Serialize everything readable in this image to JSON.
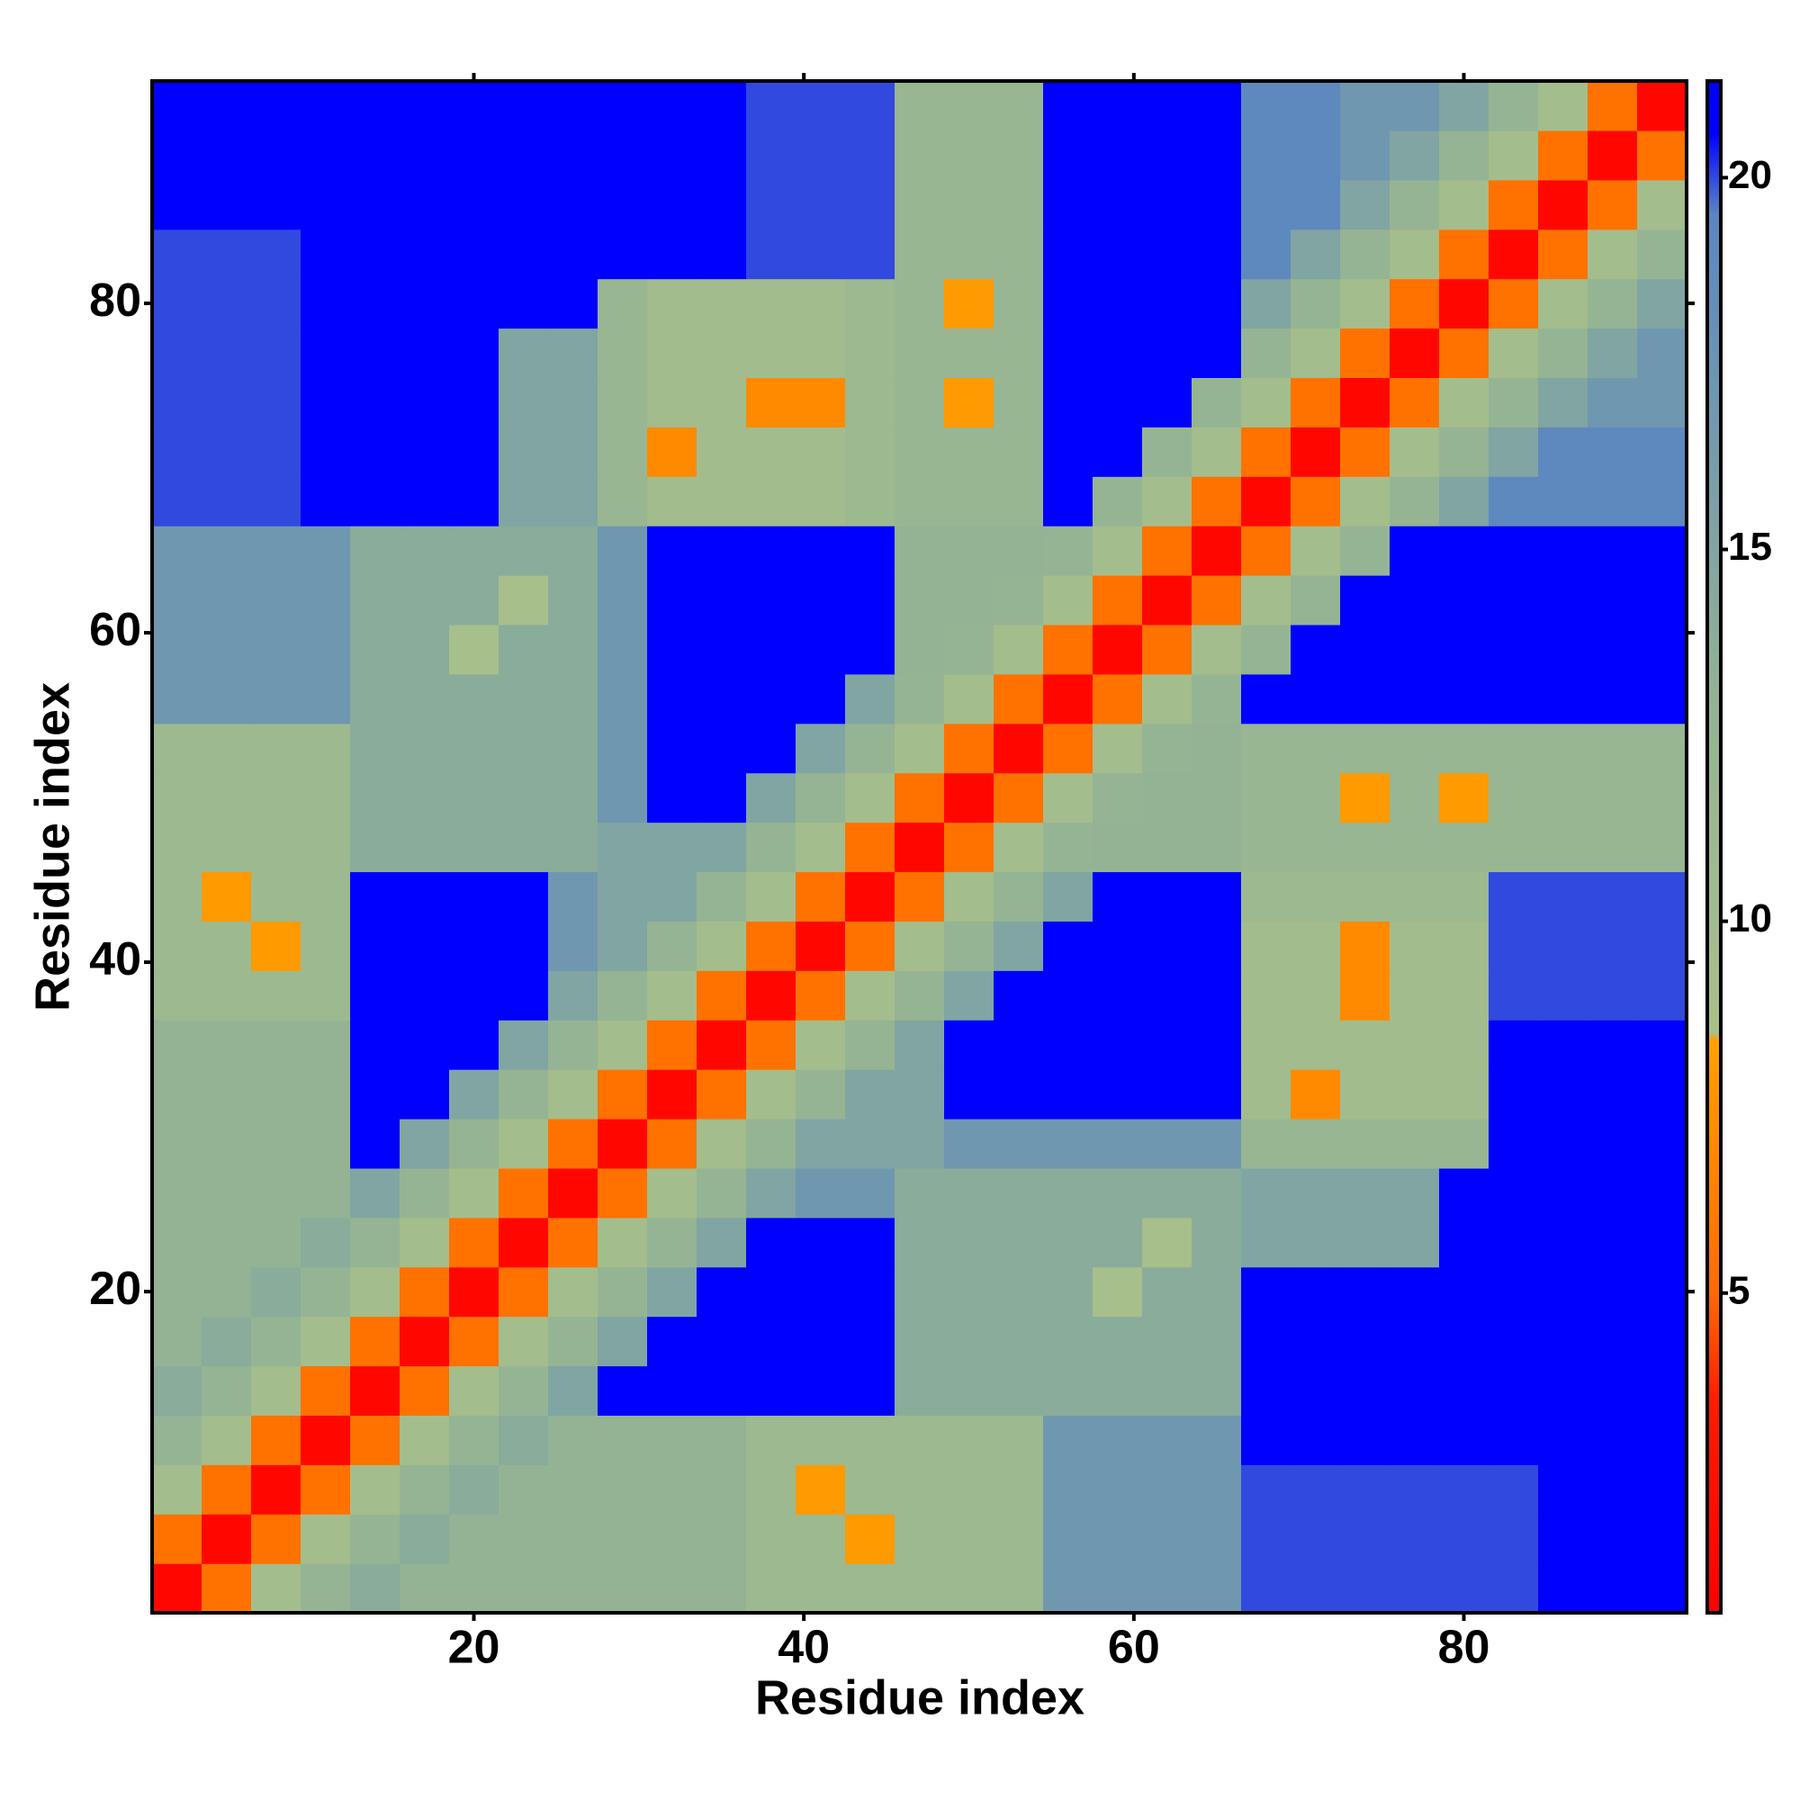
{
  "chart_data": {
    "type": "heatmap",
    "xlabel": "Residue index",
    "ylabel": "Residue index",
    "xlim": [
      0.5,
      93.5
    ],
    "ylim": [
      0.5,
      93.5
    ],
    "xticks": [
      20,
      40,
      60,
      80
    ],
    "yticks": [
      20,
      40,
      60,
      80
    ],
    "xbins": [
      0.5,
      3.5,
      6.5,
      9.5,
      12.5,
      15.5,
      18.5,
      21.5,
      24.5,
      27.5,
      30.5,
      33.5,
      36.5,
      39.5,
      42.5,
      45.5,
      48.5,
      51.5,
      54.5,
      57.5,
      60.5,
      63.5,
      66.5,
      69.5,
      72.5,
      75.5,
      78.5,
      81.5,
      84.5,
      87.5,
      90.5,
      93.5
    ],
    "ybins": [
      0.5,
      3.5,
      6.5,
      9.5,
      12.5,
      15.5,
      18.5,
      21.5,
      24.5,
      27.5,
      30.5,
      33.5,
      36.5,
      39.5,
      42.5,
      45.5,
      48.5,
      51.5,
      54.5,
      57.5,
      60.5,
      63.5,
      66.5,
      69.5,
      72.5,
      75.5,
      78.5,
      81.5,
      84.5,
      87.5,
      90.5,
      93.5
    ],
    "clim": [
      0.7,
      21.3
    ],
    "cticks": [
      5,
      10,
      15,
      20
    ],
    "colorscale": [
      {
        "value": 0.7,
        "color": "#ff0000"
      },
      {
        "value": 3.5,
        "color": "#ff1a00"
      },
      {
        "value": 5,
        "color": "#ff6a00"
      },
      {
        "value": 8.4,
        "color": "#ffa000"
      },
      {
        "value": 8.5,
        "color": "#a9c08a"
      },
      {
        "value": 13,
        "color": "#93b394"
      },
      {
        "value": 19.5,
        "color": "#5a86c2"
      },
      {
        "value": 20.6,
        "color": "#0000ff"
      },
      {
        "value": 21.3,
        "color": "#0000ff"
      }
    ],
    "values": [
      [
        1.5,
        5.5,
        9.5,
        12.5,
        14,
        13,
        13,
        13,
        13,
        13,
        13,
        13,
        11,
        11,
        11,
        11,
        11,
        11,
        17,
        17,
        17,
        17,
        20,
        20,
        20,
        20,
        20,
        20,
        21,
        21,
        21
      ],
      [
        5.5,
        1.5,
        5.5,
        9.5,
        12.5,
        14,
        13,
        13,
        13,
        13,
        13,
        13,
        11,
        11,
        8,
        11,
        11,
        11,
        17,
        17,
        17,
        17,
        20,
        20,
        20,
        20,
        20,
        20,
        21,
        21,
        21
      ],
      [
        9.5,
        5.5,
        1.5,
        5.5,
        9.5,
        12.5,
        14,
        13,
        13,
        13,
        13,
        13,
        11,
        8,
        11,
        11,
        11,
        11,
        17,
        17,
        17,
        17,
        20,
        20,
        20,
        20,
        20,
        20,
        21,
        21,
        21
      ],
      [
        12.5,
        9.5,
        5.5,
        1.5,
        5.5,
        9.5,
        12.5,
        14,
        13,
        13,
        13,
        13,
        11,
        11,
        11,
        11,
        11,
        11,
        17,
        17,
        17,
        17,
        21,
        21,
        21,
        21,
        21,
        21,
        21,
        21,
        21
      ],
      [
        14,
        12.5,
        9.5,
        5.5,
        1.5,
        5.5,
        9.5,
        12.5,
        15,
        21,
        21,
        21,
        21,
        21,
        21,
        14,
        14,
        14,
        14,
        14,
        14,
        14,
        21,
        21,
        21,
        21,
        21,
        21,
        21,
        21,
        21
      ],
      [
        13,
        14,
        12.5,
        9.5,
        5.5,
        1.5,
        5.5,
        9.5,
        12.5,
        15,
        21,
        21,
        21,
        21,
        21,
        14,
        14,
        14,
        14,
        14,
        14,
        14,
        21,
        21,
        21,
        21,
        21,
        21,
        21,
        21,
        21
      ],
      [
        13,
        13,
        14,
        12.5,
        9.5,
        5.5,
        1.5,
        5.5,
        9.5,
        12.5,
        15,
        21,
        21,
        21,
        21,
        14,
        14,
        14,
        14,
        9,
        14,
        14,
        21,
        21,
        21,
        21,
        21,
        21,
        21,
        21,
        21
      ],
      [
        13,
        13,
        13,
        14,
        12.5,
        9.5,
        5.5,
        1.5,
        5.5,
        9.5,
        12.5,
        15,
        21,
        21,
        21,
        14,
        14,
        14,
        14,
        14,
        9,
        14,
        15,
        15,
        15,
        15,
        21,
        21,
        21,
        21,
        21
      ],
      [
        13,
        13,
        13,
        13,
        15,
        12.5,
        9.5,
        5.5,
        1.5,
        5.5,
        9.5,
        12.5,
        15,
        17,
        17,
        14,
        14,
        14,
        14,
        14,
        14,
        14,
        15,
        15,
        15,
        15,
        21,
        21,
        21,
        21,
        21
      ],
      [
        13,
        13,
        13,
        13,
        21,
        15,
        12.5,
        9.5,
        5.5,
        1.5,
        5.5,
        9.5,
        12.5,
        15,
        15,
        15,
        17,
        17,
        17,
        17,
        17,
        17,
        12,
        12,
        12,
        12,
        12,
        21,
        21,
        21,
        21
      ],
      [
        13,
        13,
        13,
        13,
        21,
        21,
        15,
        12.5,
        9.5,
        5.5,
        1.5,
        5.5,
        9.5,
        12.5,
        15,
        15,
        21,
        21,
        21,
        21,
        21,
        21,
        10,
        7,
        10,
        10,
        10,
        21,
        21,
        21,
        21
      ],
      [
        13,
        13,
        13,
        13,
        21,
        21,
        21,
        15,
        12.5,
        9.5,
        5.5,
        1.5,
        5.5,
        9.5,
        12.5,
        15,
        21,
        21,
        21,
        21,
        21,
        21,
        10,
        10,
        10,
        10,
        10,
        21,
        21,
        21,
        21
      ],
      [
        11,
        11,
        11,
        11,
        21,
        21,
        21,
        21,
        15,
        12.5,
        9.5,
        5.5,
        1.5,
        5.5,
        9.5,
        12.5,
        15,
        21,
        21,
        21,
        21,
        21,
        10,
        10,
        7,
        10,
        10,
        20,
        20,
        20,
        20
      ],
      [
        11,
        11,
        8,
        11,
        21,
        21,
        21,
        21,
        17,
        15,
        12.5,
        9.5,
        5.5,
        1.5,
        5.5,
        9.5,
        12.5,
        15,
        21,
        21,
        21,
        21,
        10,
        10,
        7,
        10,
        10,
        20,
        20,
        20,
        20
      ],
      [
        11,
        8,
        11,
        11,
        21,
        21,
        21,
        21,
        17,
        15,
        15,
        12.5,
        9.5,
        5.5,
        1.5,
        5.5,
        9.5,
        12.5,
        15,
        21,
        21,
        21,
        11,
        11,
        11,
        11,
        11,
        20,
        20,
        20,
        20
      ],
      [
        11,
        11,
        11,
        11,
        14,
        14,
        14,
        14,
        14,
        15,
        15,
        15,
        12.5,
        9.5,
        5.5,
        1.5,
        5.5,
        9.5,
        12.5,
        13,
        13,
        13,
        12,
        12,
        12,
        12,
        12,
        12,
        12,
        12,
        12
      ],
      [
        11,
        11,
        11,
        11,
        14,
        14,
        14,
        14,
        14,
        17,
        21,
        21,
        15,
        12.5,
        9.5,
        5.5,
        1.5,
        5.5,
        9.5,
        12.5,
        13,
        13,
        12,
        12,
        8,
        12,
        8,
        12,
        12,
        12,
        12
      ],
      [
        11,
        11,
        11,
        11,
        14,
        14,
        14,
        14,
        14,
        17,
        21,
        21,
        21,
        15,
        12.5,
        9.5,
        5.5,
        1.5,
        5.5,
        9.5,
        12.5,
        13,
        12,
        12,
        12,
        12,
        12,
        12,
        12,
        12,
        12
      ],
      [
        17,
        17,
        17,
        17,
        14,
        14,
        14,
        14,
        14,
        17,
        21,
        21,
        21,
        21,
        15,
        12.5,
        9.5,
        5.5,
        1.5,
        5.5,
        9.5,
        12.5,
        21,
        21,
        21,
        21,
        21,
        21,
        21,
        21,
        21
      ],
      [
        17,
        17,
        17,
        17,
        14,
        14,
        9,
        14,
        14,
        17,
        21,
        21,
        21,
        21,
        21,
        13,
        12.5,
        9.5,
        5.5,
        1.5,
        5.5,
        9.5,
        12.5,
        21,
        21,
        21,
        21,
        21,
        21,
        21,
        21
      ],
      [
        17,
        17,
        17,
        17,
        14,
        14,
        14,
        9,
        14,
        17,
        21,
        21,
        21,
        21,
        21,
        13,
        13,
        12.5,
        9.5,
        5.5,
        1.5,
        5.5,
        9.5,
        12.5,
        21,
        21,
        21,
        21,
        21,
        21,
        21
      ],
      [
        17,
        17,
        17,
        17,
        14,
        14,
        14,
        14,
        14,
        17,
        21,
        21,
        21,
        21,
        21,
        13,
        13,
        13,
        12.5,
        9.5,
        5.5,
        1.5,
        5.5,
        9.5,
        12.5,
        21,
        21,
        21,
        21,
        21,
        21
      ],
      [
        20,
        20,
        20,
        21,
        21,
        21,
        21,
        15,
        15,
        12,
        10,
        10,
        10,
        10,
        11,
        12,
        12,
        12,
        21,
        12.5,
        9.5,
        5.5,
        1.5,
        5.5,
        9.5,
        12.5,
        15,
        19,
        19,
        19,
        19
      ],
      [
        20,
        20,
        20,
        21,
        21,
        21,
        21,
        15,
        15,
        12,
        7,
        10,
        10,
        10,
        11,
        12,
        12,
        12,
        21,
        21,
        12.5,
        9.5,
        5.5,
        1.5,
        5.5,
        9.5,
        12.5,
        15,
        19,
        19,
        19
      ],
      [
        20,
        20,
        20,
        21,
        21,
        21,
        21,
        15,
        15,
        12,
        10,
        10,
        7,
        7,
        11,
        12,
        8,
        12,
        21,
        21,
        21,
        12.5,
        9.5,
        5.5,
        1.5,
        5.5,
        9.5,
        12.5,
        15,
        17,
        17
      ],
      [
        20,
        20,
        20,
        21,
        21,
        21,
        21,
        15,
        15,
        12,
        10,
        10,
        10,
        10,
        11,
        12,
        12,
        12,
        21,
        21,
        21,
        21,
        12.5,
        9.5,
        5.5,
        1.5,
        5.5,
        9.5,
        12.5,
        15,
        17
      ],
      [
        20,
        20,
        20,
        21,
        21,
        21,
        21,
        21,
        21,
        12,
        10,
        10,
        10,
        10,
        11,
        12,
        8,
        12,
        21,
        21,
        21,
        21,
        15,
        12.5,
        9.5,
        5.5,
        1.5,
        5.5,
        9.5,
        12.5,
        15
      ],
      [
        20,
        20,
        20,
        21,
        21,
        21,
        21,
        21,
        21,
        21,
        21,
        21,
        20,
        20,
        20,
        12,
        12,
        12,
        21,
        21,
        21,
        21,
        19,
        15,
        12.5,
        9.5,
        5.5,
        1.5,
        5.5,
        9.5,
        12.5
      ],
      [
        21,
        21,
        21,
        21,
        21,
        21,
        21,
        21,
        21,
        21,
        21,
        21,
        20,
        20,
        20,
        12,
        12,
        12,
        21,
        21,
        21,
        21,
        19,
        19,
        15,
        12.5,
        9.5,
        5.5,
        1.5,
        5.5,
        9.5
      ],
      [
        21,
        21,
        21,
        21,
        21,
        21,
        21,
        21,
        21,
        21,
        21,
        21,
        20,
        20,
        20,
        12,
        12,
        12,
        21,
        21,
        21,
        21,
        19,
        19,
        17,
        15,
        12.5,
        9.5,
        5.5,
        1.5,
        5.5
      ],
      [
        21,
        21,
        21,
        21,
        21,
        21,
        21,
        21,
        21,
        21,
        21,
        21,
        20,
        20,
        20,
        12,
        12,
        12,
        21,
        21,
        21,
        21,
        19,
        19,
        17,
        17,
        15,
        12.5,
        9.5,
        5.5,
        1.5
      ]
    ]
  }
}
